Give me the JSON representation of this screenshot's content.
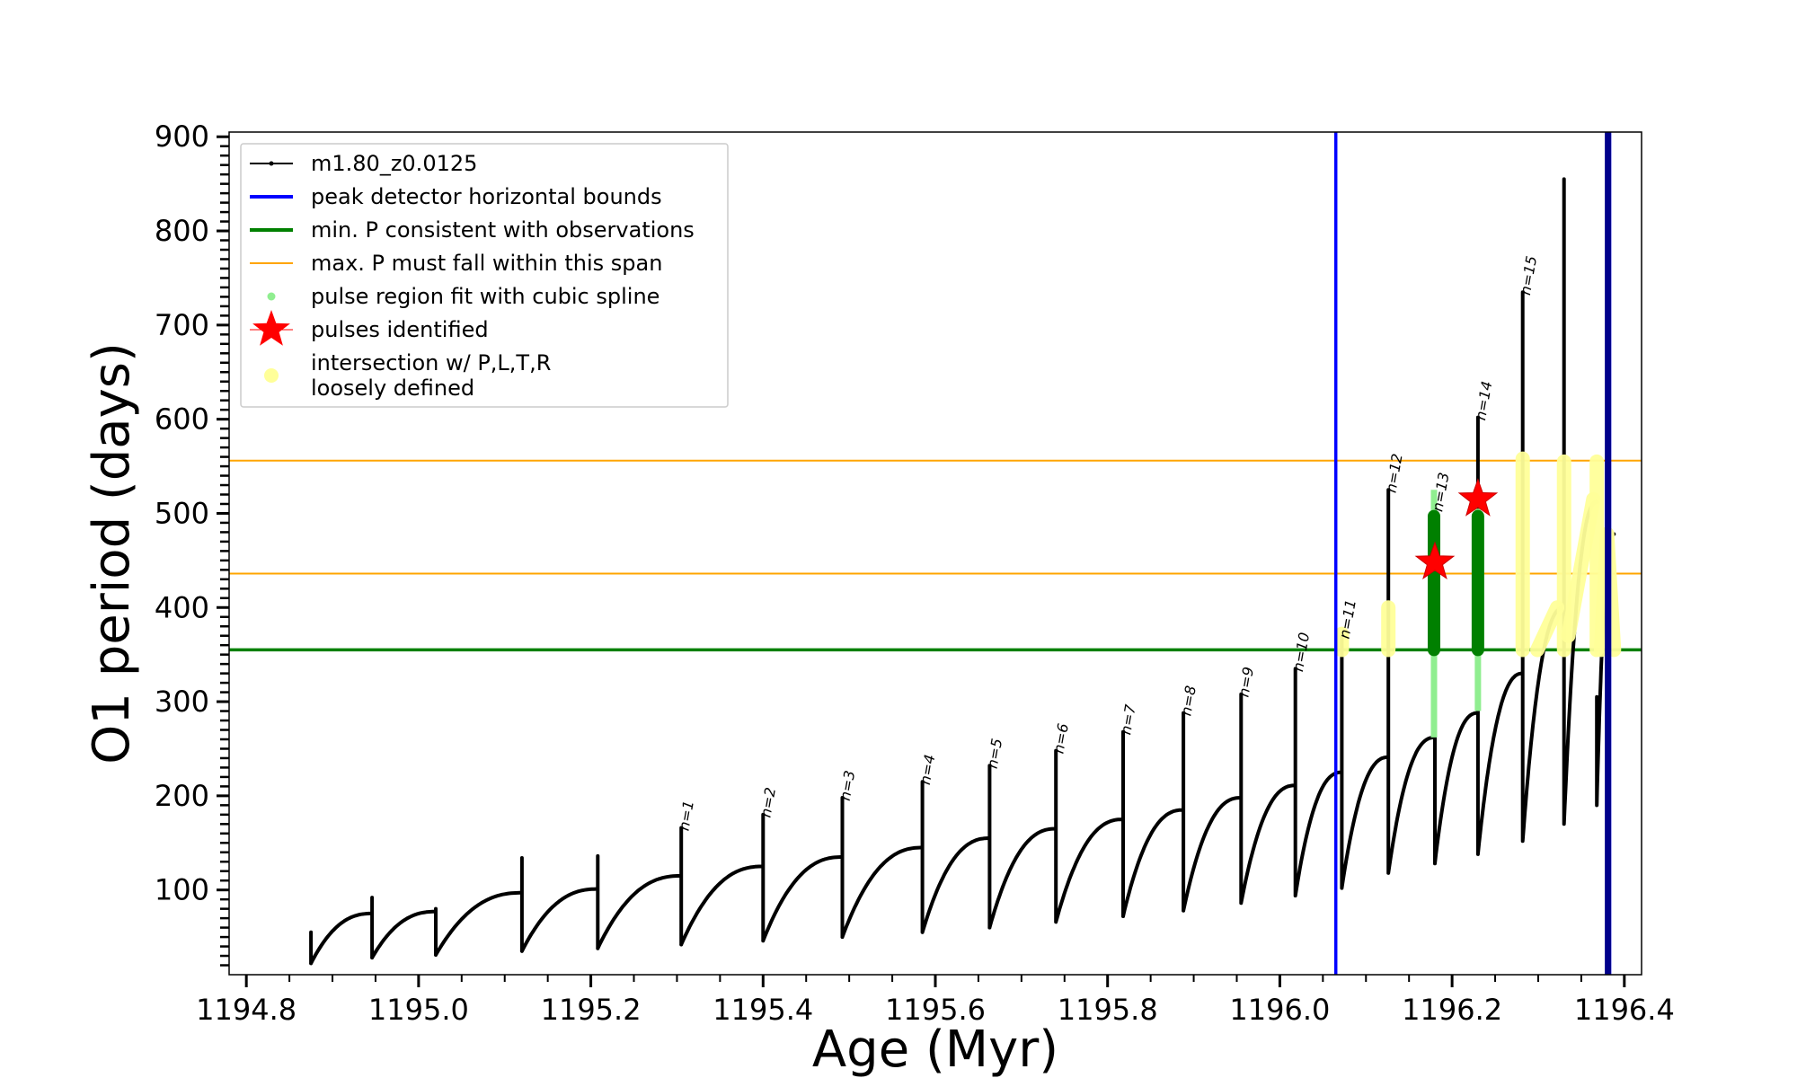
{
  "chart_data": {
    "type": "line",
    "title": "",
    "xlabel": "Age (Myr)",
    "ylabel": "O1 period (days)",
    "xlim": [
      1194.78,
      1196.42
    ],
    "ylim": [
      10,
      905
    ],
    "xticks": [
      1194.8,
      1195.0,
      1195.2,
      1195.4,
      1195.6,
      1195.8,
      1196.0,
      1196.2,
      1196.4
    ],
    "xtick_labels": [
      "1194.8",
      "1195.0",
      "1195.2",
      "1195.4",
      "1195.6",
      "1195.8",
      "1196.0",
      "1196.2",
      "1196.4"
    ],
    "yticks": [
      100,
      200,
      300,
      400,
      500,
      600,
      700,
      800,
      900
    ],
    "ytick_labels": [
      "100",
      "200",
      "300",
      "400",
      "500",
      "600",
      "700",
      "800",
      "900"
    ],
    "legend_position": "top-left",
    "legend": [
      {
        "label": "m1.80_z0.0125",
        "marker": "line-dot",
        "color": "#000000"
      },
      {
        "label": "peak detector horizontal bounds",
        "marker": "line",
        "color": "#0000ff"
      },
      {
        "label": "min. P consistent with observations",
        "marker": "line",
        "color": "#008000"
      },
      {
        "label": "max. P must fall within this span",
        "marker": "line-thin",
        "color": "#ffa500"
      },
      {
        "label": "pulse region fit with cubic spline",
        "marker": "dot",
        "color": "#90ee90"
      },
      {
        "label": "pulses identified",
        "marker": "star",
        "color": "#ff0000"
      },
      {
        "label": "intersection w/ P,L,T,R",
        "label2": "loosely defined",
        "marker": "circle",
        "color": "#ffff99"
      }
    ],
    "hlines": [
      {
        "y": 355,
        "color": "#008000",
        "width": 3.5
      },
      {
        "y": 436,
        "color": "#ffa500",
        "width": 2
      },
      {
        "y": 556,
        "color": "#ffa500",
        "width": 2
      }
    ],
    "vlines": [
      {
        "x": 1196.065,
        "color": "#0000ff",
        "width": 3.5
      },
      {
        "x": 1196.383,
        "color": "#0000ff",
        "width": 3.5
      },
      {
        "x": 1196.381,
        "color": "#00008b",
        "width": 7
      }
    ],
    "series": [
      {
        "name": "m1.80_z0.0125",
        "color": "#000000",
        "pulses": [
          {
            "t0": 1194.875,
            "t1": 1194.946,
            "start": 22,
            "peak": 75,
            "spike": 55
          },
          {
            "t0": 1194.946,
            "t1": 1195.02,
            "start": 28,
            "peak": 77,
            "spike": 92
          },
          {
            "t0": 1195.02,
            "t1": 1195.12,
            "start": 31,
            "peak": 97,
            "spike": 80
          },
          {
            "t0": 1195.12,
            "t1": 1195.208,
            "start": 35,
            "peak": 101,
            "spike": 134
          },
          {
            "t0": 1195.208,
            "t1": 1195.305,
            "start": 38,
            "peak": 115,
            "spike": 136
          },
          {
            "t0": 1195.305,
            "t1": 1195.4,
            "start": 42,
            "peak": 125,
            "spike": 166,
            "label": "n=1"
          },
          {
            "t0": 1195.4,
            "t1": 1195.492,
            "start": 46,
            "peak": 135,
            "spike": 180,
            "label": "n=2"
          },
          {
            "t0": 1195.492,
            "t1": 1195.585,
            "start": 50,
            "peak": 145,
            "spike": 198,
            "label": "n=3"
          },
          {
            "t0": 1195.585,
            "t1": 1195.663,
            "start": 55,
            "peak": 155,
            "spike": 215,
            "label": "n=4"
          },
          {
            "t0": 1195.663,
            "t1": 1195.74,
            "start": 60,
            "peak": 165,
            "spike": 232,
            "label": "n=5"
          },
          {
            "t0": 1195.74,
            "t1": 1195.818,
            "start": 66,
            "peak": 175,
            "spike": 248,
            "label": "n=6"
          },
          {
            "t0": 1195.818,
            "t1": 1195.888,
            "start": 72,
            "peak": 185,
            "spike": 268,
            "label": "n=7"
          },
          {
            "t0": 1195.888,
            "t1": 1195.955,
            "start": 78,
            "peak": 198,
            "spike": 288,
            "label": "n=8"
          },
          {
            "t0": 1195.955,
            "t1": 1196.018,
            "start": 86,
            "peak": 211,
            "spike": 308,
            "label": "n=9"
          },
          {
            "t0": 1196.018,
            "t1": 1196.072,
            "start": 94,
            "peak": 225,
            "spike": 335,
            "label": "n=10"
          },
          {
            "t0": 1196.072,
            "t1": 1196.126,
            "start": 102,
            "peak": 241,
            "spike": 370,
            "label": "n=11"
          },
          {
            "t0": 1196.126,
            "t1": 1196.18,
            "start": 118,
            "peak": 262,
            "spike": 525,
            "label": "n=12"
          },
          {
            "t0": 1196.18,
            "t1": 1196.23,
            "start": 128,
            "peak": 288,
            "spike": 505,
            "label": "n=13"
          },
          {
            "t0": 1196.23,
            "t1": 1196.282,
            "start": 138,
            "peak": 330,
            "spike": 602,
            "label": "n=14"
          },
          {
            "t0": 1196.282,
            "t1": 1196.33,
            "start": 152,
            "peak": 400,
            "spike": 735,
            "label": "n=15"
          },
          {
            "t0": 1196.33,
            "t1": 1196.368,
            "start": 170,
            "peak": 512,
            "spike": 855
          },
          {
            "t0": 1196.368,
            "t1": 1196.388,
            "start": 190,
            "peak": 478,
            "spike": 305
          }
        ]
      },
      {
        "name": "pulse region fit with cubic spline",
        "color": "#90ee90",
        "segments": [
          {
            "x": 1196.179,
            "y0": 262,
            "y1": 525,
            "core0": 355,
            "core1": 497
          },
          {
            "x": 1196.23,
            "y0": 290,
            "y1": 505,
            "core0": 355,
            "core1": 497
          }
        ]
      },
      {
        "name": "pulses identified",
        "color": "#ff0000",
        "points": [
          {
            "x": 1196.18,
            "y": 448
          },
          {
            "x": 1196.23,
            "y": 515
          }
        ]
      },
      {
        "name": "intersection w/ P,L,T,R",
        "color": "#ffff99",
        "segments": [
          {
            "x0": 1196.072,
            "y0": 355,
            "x1": 1196.072,
            "y1": 372
          },
          {
            "x0": 1196.126,
            "y0": 355,
            "x1": 1196.126,
            "y1": 400
          },
          {
            "x0": 1196.282,
            "y0": 355,
            "x1": 1196.282,
            "y1": 558
          },
          {
            "x0": 1196.33,
            "y0": 355,
            "x1": 1196.33,
            "y1": 555
          },
          {
            "x0": 1196.368,
            "y0": 355,
            "x1": 1196.368,
            "y1": 555
          },
          {
            "x0": 1196.299,
            "y0": 355,
            "x1": 1196.322,
            "y1": 400
          },
          {
            "x0": 1196.335,
            "y0": 370,
            "x1": 1196.364,
            "y1": 515
          },
          {
            "x0": 1196.373,
            "y0": 355,
            "x1": 1196.38,
            "y1": 478
          },
          {
            "x0": 1196.38,
            "y0": 478,
            "x1": 1196.388,
            "y1": 355
          }
        ]
      }
    ]
  }
}
